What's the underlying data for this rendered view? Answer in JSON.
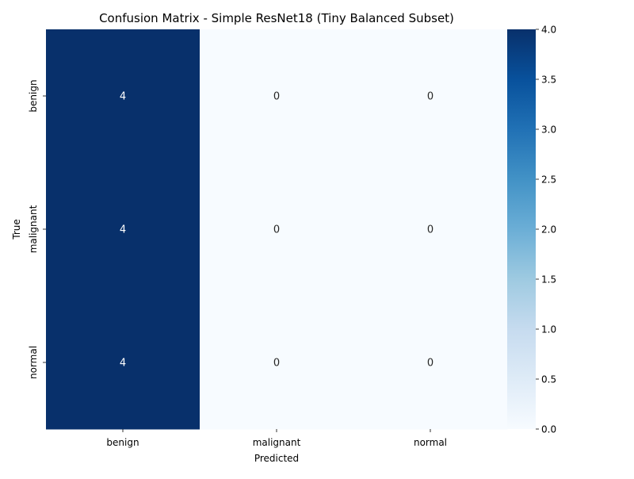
{
  "chart_data": {
    "type": "heatmap",
    "title": "Confusion Matrix - Simple ResNet18 (Tiny Balanced Subset)",
    "xlabel": "Predicted",
    "ylabel": "True",
    "x_categories": [
      "benign",
      "malignant",
      "normal"
    ],
    "y_categories": [
      "benign",
      "malignant",
      "normal"
    ],
    "values": [
      [
        4,
        0,
        0
      ],
      [
        4,
        0,
        0
      ],
      [
        4,
        0,
        0
      ]
    ],
    "colormap": "Blues",
    "color_low": "#f7fbff",
    "color_high": "#08306b",
    "colorbar_range": [
      0.0,
      4.0
    ],
    "colorbar_ticks": [
      "0.0",
      "0.5",
      "1.0",
      "1.5",
      "2.0",
      "2.5",
      "3.0",
      "3.5",
      "4.0"
    ],
    "annotation_color_dark": "#262626",
    "annotation_color_light": "#ffffff"
  }
}
